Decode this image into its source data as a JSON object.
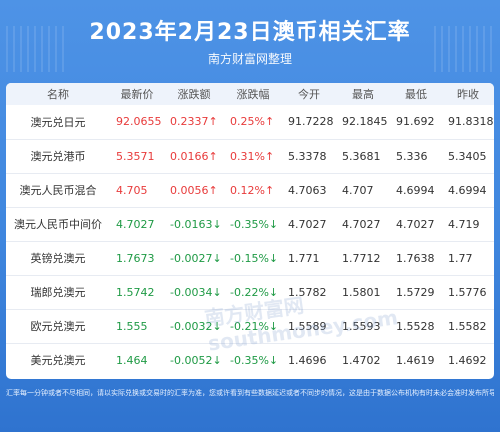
{
  "header": {
    "title": "2023年2月23日澳币相关汇率",
    "subtitle": "南方财富网整理"
  },
  "table": {
    "columns": [
      "名称",
      "最新价",
      "涨跌额",
      "涨跌幅",
      "今开",
      "最高",
      "最低",
      "昨收"
    ],
    "rows": [
      {
        "name": "澳元兑日元",
        "latest": "92.0655",
        "change": "0.2337↑",
        "pct": "0.25%↑",
        "open": "91.7228",
        "high": "92.1845",
        "low": "91.692",
        "prev": "91.8318",
        "dir": "up"
      },
      {
        "name": "澳元兑港币",
        "latest": "5.3571",
        "change": "0.0166↑",
        "pct": "0.31%↑",
        "open": "5.3378",
        "high": "5.3681",
        "low": "5.336",
        "prev": "5.3405",
        "dir": "up"
      },
      {
        "name": "澳元人民币混合",
        "latest": "4.705",
        "change": "0.0056↑",
        "pct": "0.12%↑",
        "open": "4.7063",
        "high": "4.707",
        "low": "4.6994",
        "prev": "4.6994",
        "dir": "up"
      },
      {
        "name": "澳元人民币中间价",
        "latest": "4.7027",
        "change": "-0.0163↓",
        "pct": "-0.35%↓",
        "open": "4.7027",
        "high": "4.7027",
        "low": "4.7027",
        "prev": "4.719",
        "dir": "down"
      },
      {
        "name": "英镑兑澳元",
        "latest": "1.7673",
        "change": "-0.0027↓",
        "pct": "-0.15%↓",
        "open": "1.771",
        "high": "1.7712",
        "low": "1.7638",
        "prev": "1.77",
        "dir": "down"
      },
      {
        "name": "瑞郎兑澳元",
        "latest": "1.5742",
        "change": "-0.0034↓",
        "pct": "-0.22%↓",
        "open": "1.5782",
        "high": "1.5801",
        "low": "1.5729",
        "prev": "1.5776",
        "dir": "down"
      },
      {
        "name": "欧元兑澳元",
        "latest": "1.555",
        "change": "-0.0032↓",
        "pct": "-0.21%↓",
        "open": "1.5589",
        "high": "1.5593",
        "low": "1.5528",
        "prev": "1.5582",
        "dir": "down"
      },
      {
        "name": "美元兑澳元",
        "latest": "1.464",
        "change": "-0.0052↓",
        "pct": "-0.35%↓",
        "open": "1.4696",
        "high": "1.4702",
        "low": "1.4619",
        "prev": "1.4692",
        "dir": "down"
      }
    ]
  },
  "watermark": "南方财富网 southmoney.com",
  "footer": "汇率每一分钟或者不尽相同，请以实际兑换或交易时的汇率为准，您或许看到有些数据延迟或者不同步的情况，这是由于数据公布机构有时未必会准时发布所导致，请以实际为准。"
}
